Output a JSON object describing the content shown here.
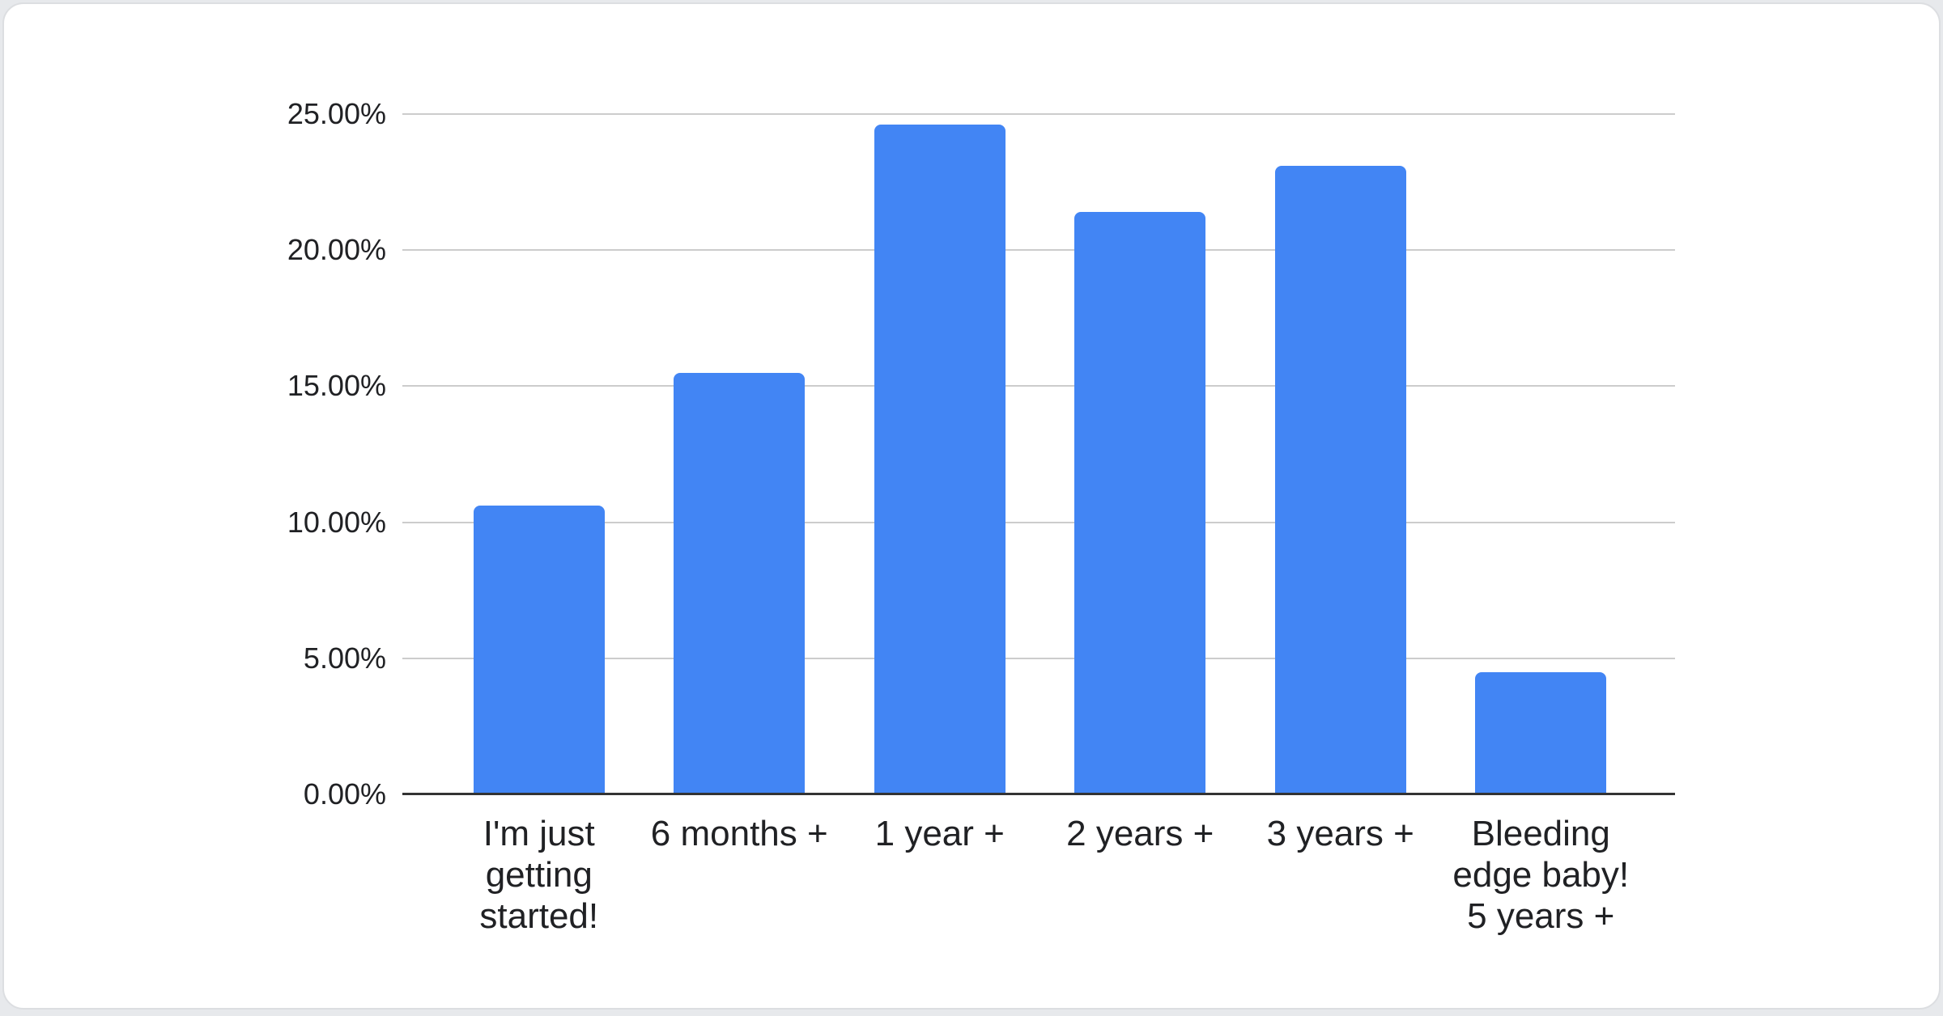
{
  "colors": {
    "page_bg": "#e7e9ec",
    "card_bg": "#ffffff",
    "card_border": "#dcdee1",
    "bar_fill": "#4285f4",
    "gridline": "#cccccc",
    "axis_line": "#333333",
    "label_text": "#202124"
  },
  "chart_data": {
    "type": "bar",
    "title": "",
    "xlabel": "",
    "ylabel": "",
    "categories": [
      "I'm just\ngetting\nstarted!",
      "6 months +",
      "1 year +",
      "2 years +",
      "3 years +",
      "Bleeding\nedge baby!\n5 years +"
    ],
    "values": [
      10.6,
      15.5,
      24.6,
      21.4,
      23.1,
      4.5
    ],
    "unit": "%",
    "y_ticks": [
      "0.00%",
      "5.00%",
      "10.00%",
      "15.00%",
      "20.00%",
      "25.00%"
    ],
    "y_tick_values": [
      0,
      5,
      10,
      15,
      20,
      25
    ],
    "ylim": [
      0,
      25
    ],
    "grid": "on",
    "legend": "none"
  }
}
